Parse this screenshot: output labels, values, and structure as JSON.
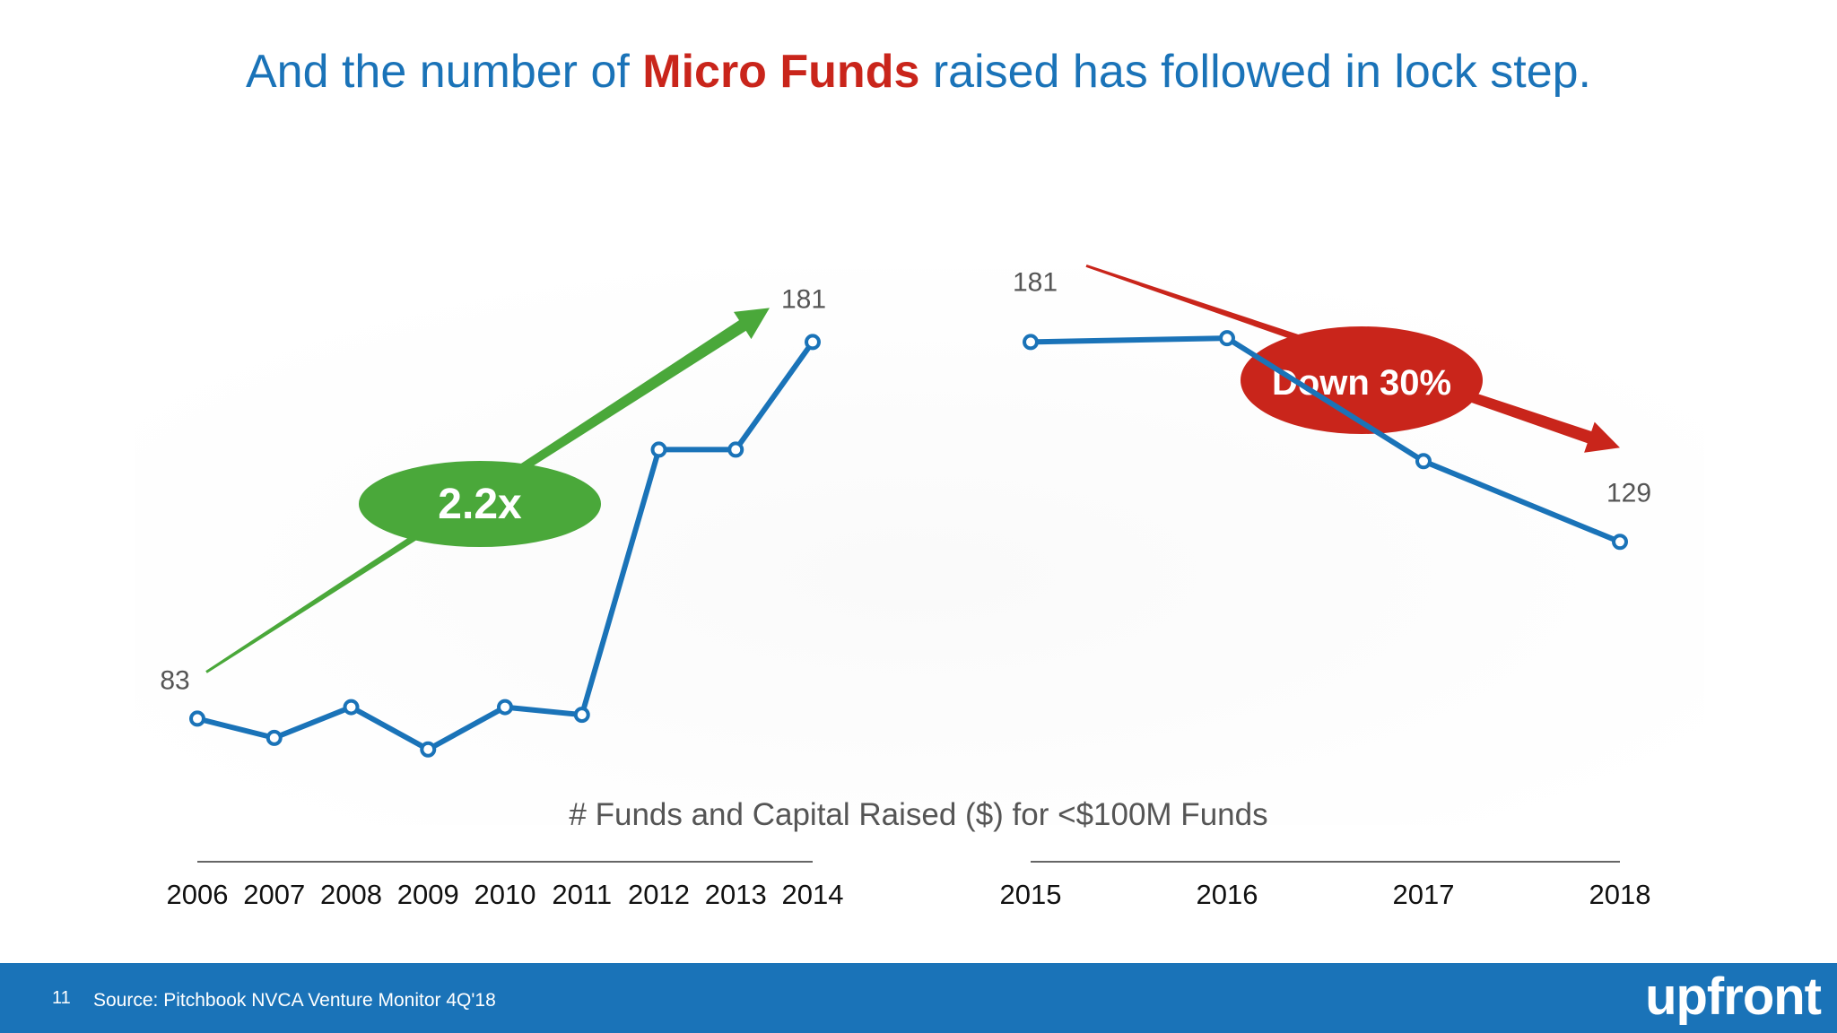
{
  "title": {
    "prefix": "And the number of ",
    "highlight": "Micro Funds",
    "suffix": " raised has followed in lock step."
  },
  "colors": {
    "line": "#1a73b8",
    "green": "#4aa83a",
    "red": "#c9251b",
    "text": "#555555",
    "axis_text": "#111111"
  },
  "chart_data": [
    {
      "type": "line",
      "categories": [
        "2006",
        "2007",
        "2008",
        "2009",
        "2010",
        "2011",
        "2012",
        "2013",
        "2014"
      ],
      "values": [
        83,
        78,
        86,
        75,
        86,
        84,
        153,
        153,
        181
      ],
      "ylim": [
        60,
        200
      ],
      "xlabel": "",
      "ylabel": "",
      "grid": false,
      "labels": [
        {
          "index": 0,
          "text": "83"
        },
        {
          "index": 8,
          "text": "181"
        }
      ],
      "trend": {
        "direction": "up",
        "label": "2.2x",
        "color": "green"
      }
    },
    {
      "type": "line",
      "categories": [
        "2015",
        "2016",
        "2017",
        "2018"
      ],
      "values": [
        181,
        182,
        150,
        129
      ],
      "ylim": [
        60,
        200
      ],
      "xlabel": "",
      "ylabel": "",
      "grid": false,
      "labels": [
        {
          "index": 0,
          "text": "181"
        },
        {
          "index": 3,
          "text": "129"
        }
      ],
      "trend": {
        "direction": "down",
        "label": "Down 30%",
        "color": "red"
      }
    }
  ],
  "chart_caption": "# Funds and Capital Raised ($) for <$100M Funds",
  "footer": {
    "page_number": "11",
    "source": "Source: Pitchbook NVCA Venture Monitor 4Q'18",
    "brand": "upfront"
  }
}
